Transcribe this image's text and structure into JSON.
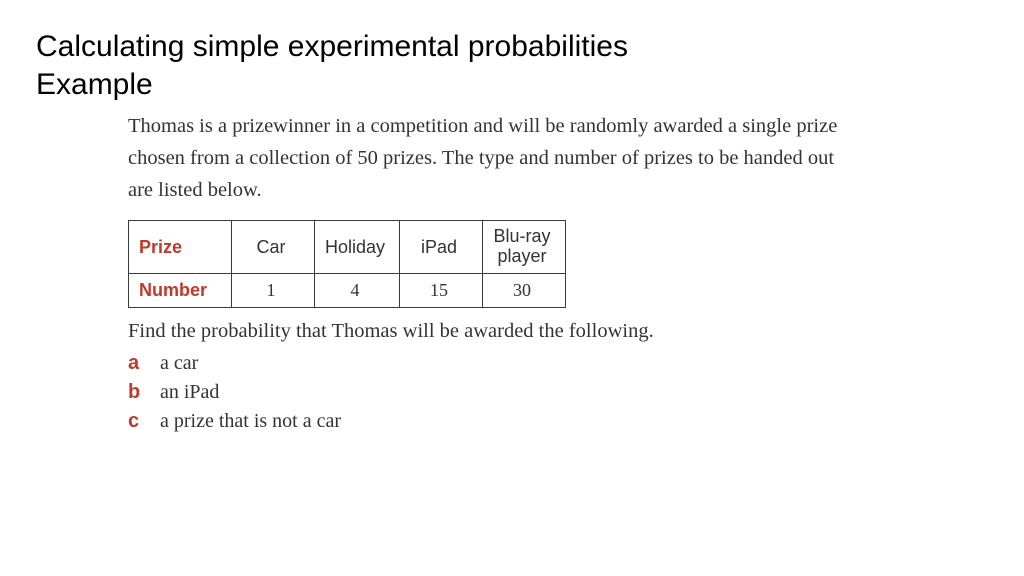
{
  "heading": {
    "line1": "Calculating simple experimental probabilities",
    "line2": "Example"
  },
  "problem": {
    "text": "Thomas is a prizewinner in a competition and will be randomly awarded a single prize chosen from a collection of 50 prizes. The type and number of prizes to be handed out are listed below."
  },
  "table": {
    "row_labels": {
      "prize": "Prize",
      "number": "Number"
    },
    "columns": [
      {
        "head": "Car",
        "value": "1"
      },
      {
        "head": "Holiday",
        "value": "4"
      },
      {
        "head": "iPad",
        "value": "15"
      },
      {
        "head": "Blu-ray player",
        "value": "30"
      }
    ],
    "label_color": "#c0392b",
    "border_color": "#3b3b3b",
    "cell_fontsize": 18
  },
  "question": "Find the probability that Thomas will be awarded the following.",
  "options": [
    {
      "letter": "a",
      "text": "a car"
    },
    {
      "letter": "b",
      "text": "an iPad"
    },
    {
      "letter": "c",
      "text": "a prize that is not a car"
    }
  ],
  "style": {
    "heading_fontsize": 30,
    "body_fontsize": 20.5,
    "accent_color": "#c0392b",
    "text_color": "#333333",
    "background_color": "#ffffff"
  }
}
